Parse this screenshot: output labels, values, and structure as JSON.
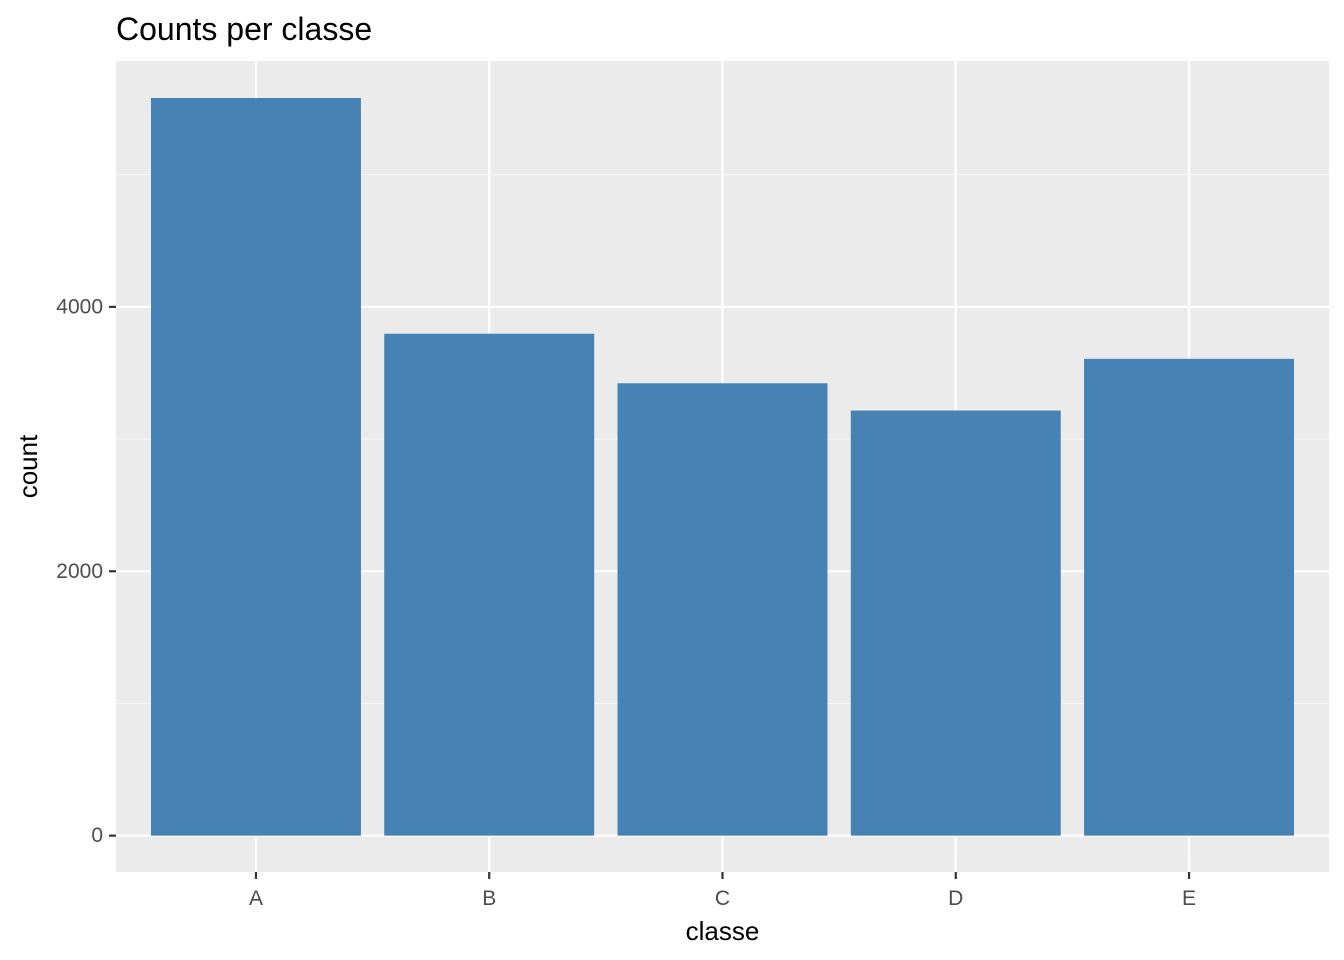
{
  "chart_data": {
    "type": "bar",
    "title": "Counts per classe",
    "xlabel": "classe",
    "ylabel": "count",
    "categories": [
      "A",
      "B",
      "C",
      "D",
      "E"
    ],
    "values": [
      5580,
      3797,
      3422,
      3216,
      3607
    ],
    "ylim": [
      -275,
      5860
    ],
    "yticks": [
      0,
      2000,
      4000
    ],
    "ytick_labels": [
      "0",
      "2000",
      "4000"
    ],
    "grid": true,
    "legend": "none",
    "colors": {
      "bar": "#4682b4",
      "panel": "#ebebeb",
      "grid_major": "#ffffff",
      "grid_minor": "#f7f7f7",
      "tick": "#333333"
    }
  }
}
